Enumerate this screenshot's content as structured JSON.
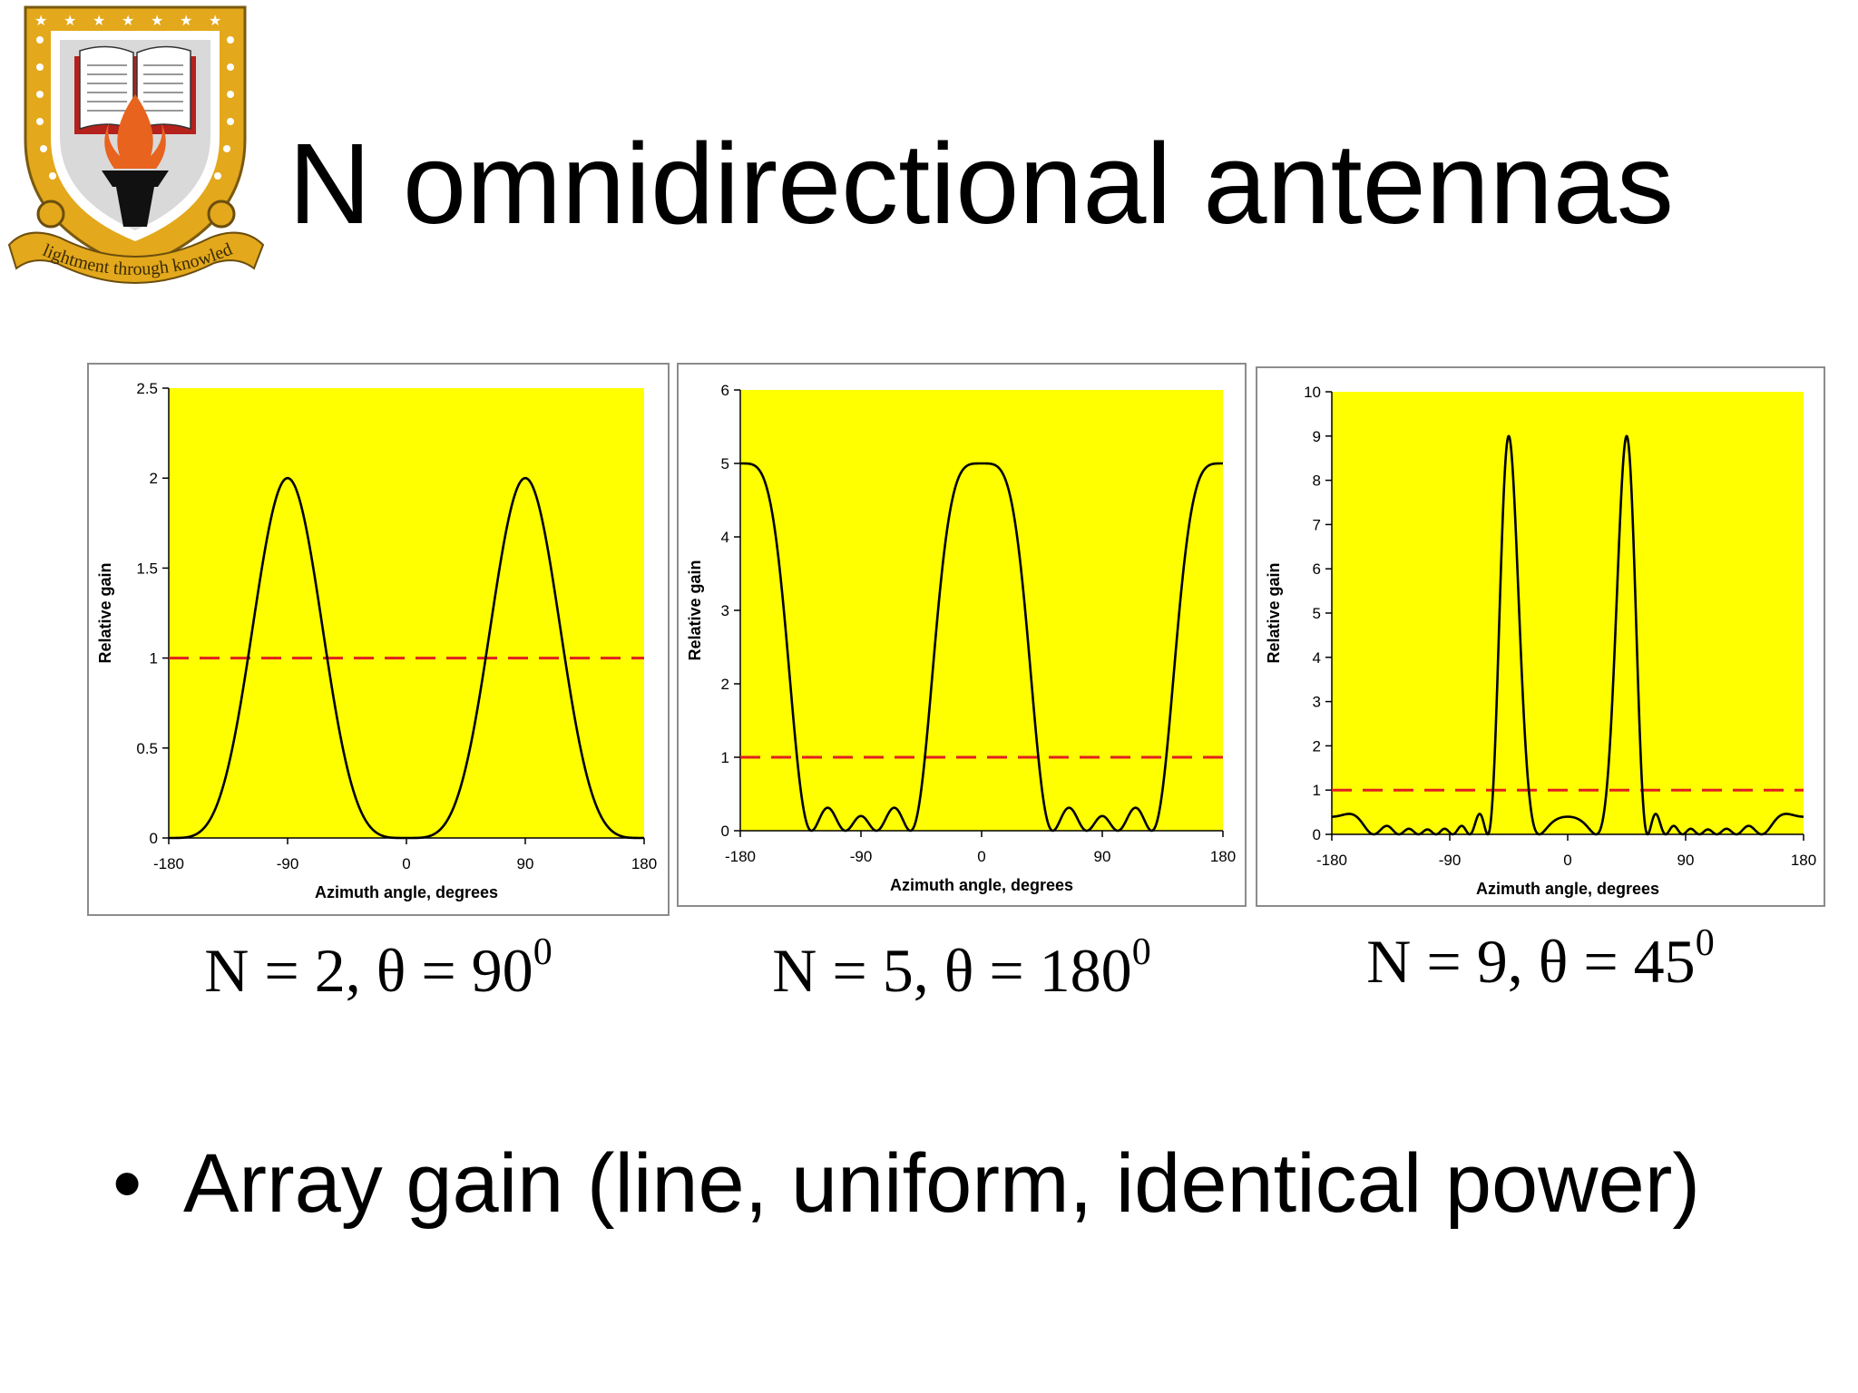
{
  "slide": {
    "title": "N omnidirectional antennas",
    "bullet": "Array gain (line, uniform, identical power)",
    "logo_motto": "Enlightment through knowledge"
  },
  "colors": {
    "plot_background": "#ffff00",
    "curve": "#000000",
    "reference_line": "#e02020",
    "logo_gold": "#e3a81b",
    "logo_red": "#b5211c"
  },
  "chart_data": [
    {
      "type": "line",
      "caption": {
        "prefix": "N = 2, θ = 90",
        "sup": "0"
      },
      "N": 2,
      "theta_deg": 90,
      "xlabel": "Azimuth angle, degrees",
      "ylabel": "Relative gain",
      "xlim": [
        -180,
        180
      ],
      "ylim": [
        0,
        2.5
      ],
      "xticks": [
        "-180",
        "-90",
        "0",
        "90",
        "180"
      ],
      "yticks": [
        "0",
        "0.5",
        "1",
        "1.5",
        "2",
        "2.5"
      ],
      "reference_line": 1,
      "grid": false,
      "legend": "none"
    },
    {
      "type": "line",
      "caption": {
        "prefix": "N = 5, θ = 180",
        "sup": "0"
      },
      "N": 5,
      "theta_deg": 180,
      "xlabel": "Azimuth angle, degrees",
      "ylabel": "Relative gain",
      "xlim": [
        -180,
        180
      ],
      "ylim": [
        0,
        6
      ],
      "xticks": [
        "-180",
        "-90",
        "0",
        "90",
        "180"
      ],
      "yticks": [
        "0",
        "1",
        "2",
        "3",
        "4",
        "5",
        "6"
      ],
      "reference_line": 1,
      "grid": false,
      "legend": "none"
    },
    {
      "type": "line",
      "caption": {
        "prefix": "N = 9, θ = 45",
        "sup": "0"
      },
      "N": 9,
      "theta_deg": 45,
      "xlabel": "Azimuth angle, degrees",
      "ylabel": "Relative gain",
      "xlim": [
        -180,
        180
      ],
      "ylim": [
        0,
        10
      ],
      "xticks": [
        "-180",
        "-90",
        "0",
        "90",
        "180"
      ],
      "yticks": [
        "0",
        "1",
        "2",
        "3",
        "4",
        "5",
        "6",
        "7",
        "8",
        "9",
        "10"
      ],
      "reference_line": 1,
      "grid": false,
      "legend": "none"
    }
  ]
}
